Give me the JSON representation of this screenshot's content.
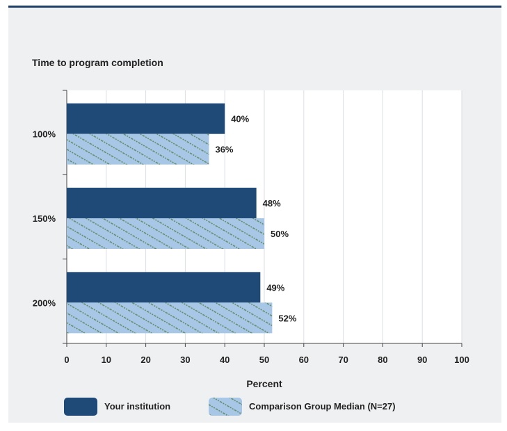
{
  "chart_data": {
    "type": "bar",
    "orientation": "horizontal",
    "title": "Time to program completion",
    "xlabel": "Percent",
    "ylabel": "",
    "categories": [
      "100%",
      "150%",
      "200%"
    ],
    "series": [
      {
        "name": "Your institution",
        "values": [
          40,
          48,
          49
        ],
        "labels": [
          "40%",
          "48%",
          "49%"
        ],
        "color": "#1f4a78",
        "pattern": "solid"
      },
      {
        "name": "Comparison Group Median (N=27)",
        "values": [
          36,
          50,
          52
        ],
        "labels": [
          "36%",
          "50%",
          "52%"
        ],
        "color": "#a8c6e6",
        "pattern": "hatched"
      }
    ],
    "xlim": [
      0,
      100
    ],
    "xticks": [
      "0",
      "10",
      "20",
      "30",
      "40",
      "50",
      "60",
      "70",
      "80",
      "90",
      "100"
    ],
    "grid": "vertical",
    "legend": "bottom"
  },
  "colors": {
    "panel_background": "#eff0f2",
    "panel_border": "#1f3f68",
    "plot_background": "#ffffff",
    "grid": "#d9dee8",
    "text": "#222222"
  }
}
